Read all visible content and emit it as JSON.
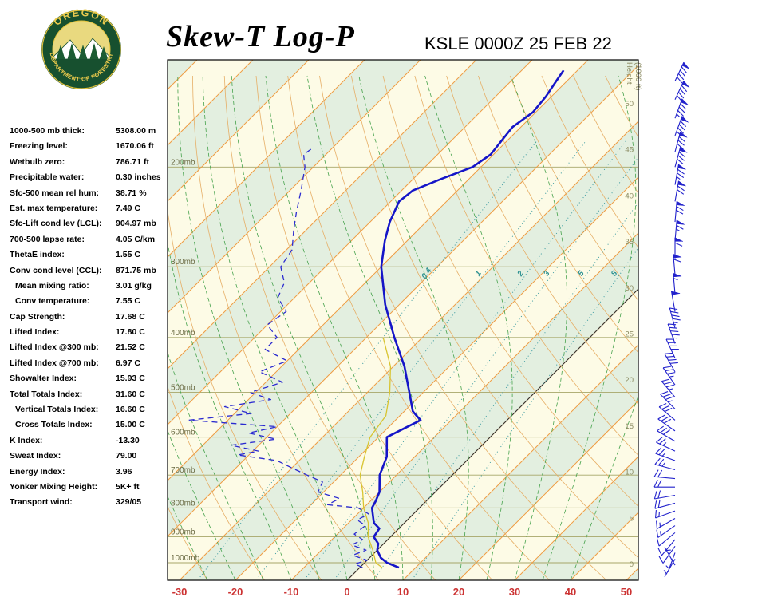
{
  "header": {
    "title": "Skew-T Log-P",
    "station_line": "KSLE 0000Z 25 FEB 22"
  },
  "logo": {
    "arc_top": "OREGON",
    "arc_bottom": "DEPARTMENT OF FORESTRY"
  },
  "stats": [
    {
      "label": "1000-500 mb thick:",
      "value": "5308.00 m",
      "indent": false
    },
    {
      "label": "Freezing level:",
      "value": "1670.06 ft",
      "indent": false
    },
    {
      "label": "Wetbulb zero:",
      "value": "786.71 ft",
      "indent": false
    },
    {
      "label": "Precipitable water:",
      "value": "0.30 inches",
      "indent": false
    },
    {
      "label": "Sfc-500 mean rel hum:",
      "value": "38.71 %",
      "indent": false
    },
    {
      "label": "Est. max temperature:",
      "value": "7.49 C",
      "indent": false
    },
    {
      "label": "Sfc-Lift cond lev (LCL):",
      "value": "904.97 mb",
      "indent": false
    },
    {
      "label": "700-500 lapse rate:",
      "value": "4.05 C/km",
      "indent": false
    },
    {
      "label": "ThetaE index:",
      "value": "1.55 C",
      "indent": false
    },
    {
      "label": "Conv cond level (CCL):",
      "value": "871.75 mb",
      "indent": false
    },
    {
      "label": "Mean mixing ratio:",
      "value": "3.01 g/kg",
      "indent": true
    },
    {
      "label": "Conv temperature:",
      "value": "7.55 C",
      "indent": true
    },
    {
      "label": "Cap Strength:",
      "value": "17.68 C",
      "indent": false
    },
    {
      "label": "Lifted Index:",
      "value": "17.80 C",
      "indent": false
    },
    {
      "label": "Lifted Index @300 mb:",
      "value": "21.52 C",
      "indent": false
    },
    {
      "label": "Lifted Index @700 mb:",
      "value": "6.97 C",
      "indent": false
    },
    {
      "label": "Showalter Index:",
      "value": "15.93 C",
      "indent": false
    },
    {
      "label": "Total Totals Index:",
      "value": "31.60 C",
      "indent": false
    },
    {
      "label": "Vertical Totals Index:",
      "value": "16.60 C",
      "indent": true
    },
    {
      "label": "Cross Totals Index:",
      "value": "15.00 C",
      "indent": true
    },
    {
      "label": "K Index:",
      "value": "-13.30",
      "indent": false
    },
    {
      "label": "Sweat Index:",
      "value": "79.00",
      "indent": false
    },
    {
      "label": "Energy Index:",
      "value": "3.96",
      "indent": false
    },
    {
      "label": "Yonker Mixing Height:",
      "value": "5K+ ft",
      "indent": false
    },
    {
      "label": "Transport wind:",
      "value": "329/05",
      "indent": false
    }
  ],
  "chart_data": {
    "type": "skewt_logp",
    "title": "Skew-T Log-P",
    "station": "KSLE",
    "valid_time": "0000Z 25 FEB 22",
    "pressure_axis": {
      "unit": "mb",
      "levels": [
        200,
        300,
        400,
        500,
        600,
        700,
        800,
        900,
        1000
      ],
      "range": [
        130,
        1074
      ]
    },
    "temp_axis": {
      "unit": "C",
      "ticks": [
        -30,
        -20,
        -10,
        0,
        10,
        20,
        30,
        40,
        50
      ],
      "skew_deg": 45
    },
    "height_axis": {
      "label": "Height",
      "unit": "(1000 ft)",
      "ticks": [
        50,
        45,
        40,
        35,
        30,
        25,
        20,
        15,
        10,
        5,
        0
      ]
    },
    "mixing_ratio_lines": [
      0.4,
      1,
      2,
      3,
      5,
      8
    ],
    "grid": {
      "isotherm_step": 10,
      "dry_adiabat_step": 10,
      "moist_adiabat_step": 5,
      "pressure_line_step": 100
    },
    "series": {
      "temperature": [
        [
          1020,
          7
        ],
        [
          1000,
          4
        ],
        [
          980,
          2
        ],
        [
          950,
          0
        ],
        [
          925,
          -1
        ],
        [
          900,
          -3
        ],
        [
          870,
          -3.5
        ],
        [
          850,
          -5.5
        ],
        [
          800,
          -8.5
        ],
        [
          780,
          -9
        ],
        [
          750,
          -10
        ],
        [
          700,
          -13
        ],
        [
          650,
          -15
        ],
        [
          600,
          -18.5
        ],
        [
          560,
          -15.5
        ],
        [
          550,
          -17
        ],
        [
          540,
          -18.5
        ],
        [
          500,
          -22.5
        ],
        [
          450,
          -28
        ],
        [
          400,
          -35
        ],
        [
          350,
          -42.5
        ],
        [
          300,
          -50
        ],
        [
          270,
          -54
        ],
        [
          250,
          -56.5
        ],
        [
          230,
          -58.5
        ],
        [
          220,
          -58
        ],
        [
          210,
          -55
        ],
        [
          200,
          -51.5
        ],
        [
          190,
          -50.5
        ],
        [
          180,
          -51
        ],
        [
          170,
          -51.5
        ],
        [
          160,
          -50.5
        ],
        [
          150,
          -51
        ],
        [
          140,
          -52
        ],
        [
          135,
          -52.5
        ]
      ],
      "dewpoint": [
        [
          1020,
          0.5
        ],
        [
          1005,
          -1.5
        ],
        [
          990,
          0
        ],
        [
          970,
          -3.5
        ],
        [
          950,
          -2
        ],
        [
          930,
          -5.5
        ],
        [
          910,
          -4.5
        ],
        [
          890,
          -7
        ],
        [
          860,
          -6.5
        ],
        [
          840,
          -9
        ],
        [
          820,
          -8
        ],
        [
          800,
          -11
        ],
        [
          790,
          -17
        ],
        [
          770,
          -16
        ],
        [
          750,
          -21
        ],
        [
          720,
          -22
        ],
        [
          700,
          -26
        ],
        [
          680,
          -30
        ],
        [
          660,
          -34
        ],
        [
          645,
          -42
        ],
        [
          635,
          -39
        ],
        [
          620,
          -45
        ],
        [
          605,
          -38
        ],
        [
          590,
          -44
        ],
        [
          575,
          -40
        ],
        [
          560,
          -57
        ],
        [
          545,
          -47
        ],
        [
          530,
          -53
        ],
        [
          515,
          -46
        ],
        [
          500,
          -51
        ],
        [
          480,
          -47
        ],
        [
          460,
          -53
        ],
        [
          440,
          -50
        ],
        [
          420,
          -56
        ],
        [
          400,
          -56
        ],
        [
          380,
          -60
        ],
        [
          360,
          -59
        ],
        [
          340,
          -63
        ],
        [
          320,
          -64.5
        ],
        [
          300,
          -68
        ],
        [
          280,
          -69
        ],
        [
          260,
          -72
        ],
        [
          240,
          -75
        ],
        [
          220,
          -78
        ],
        [
          200,
          -81.5
        ],
        [
          190,
          -84
        ],
        [
          185,
          -83.5
        ]
      ],
      "wetbulb": [
        [
          1020,
          4
        ],
        [
          1000,
          2
        ],
        [
          950,
          -0.8
        ],
        [
          900,
          -4
        ],
        [
          850,
          -6.5
        ],
        [
          800,
          -10
        ],
        [
          750,
          -13
        ],
        [
          700,
          -16.5
        ],
        [
          650,
          -19
        ],
        [
          600,
          -21.5
        ],
        [
          550,
          -22.5
        ],
        [
          500,
          -26
        ],
        [
          450,
          -30.5
        ],
        [
          400,
          -37
        ]
      ]
    },
    "winds": [
      [
        1010,
        330,
        5
      ],
      [
        985,
        210,
        5
      ],
      [
        960,
        200,
        5
      ],
      [
        935,
        215,
        10
      ],
      [
        910,
        220,
        10
      ],
      [
        885,
        230,
        10
      ],
      [
        860,
        235,
        15
      ],
      [
        835,
        240,
        15
      ],
      [
        810,
        250,
        15
      ],
      [
        785,
        255,
        20
      ],
      [
        760,
        260,
        20
      ],
      [
        735,
        270,
        20
      ],
      [
        710,
        275,
        20
      ],
      [
        685,
        285,
        25
      ],
      [
        660,
        290,
        25
      ],
      [
        635,
        295,
        25
      ],
      [
        610,
        300,
        30
      ],
      [
        585,
        305,
        30
      ],
      [
        560,
        310,
        30
      ],
      [
        535,
        315,
        35
      ],
      [
        510,
        320,
        35
      ],
      [
        485,
        325,
        35
      ],
      [
        460,
        330,
        40
      ],
      [
        435,
        335,
        40
      ],
      [
        410,
        340,
        45
      ],
      [
        385,
        345,
        45
      ],
      [
        360,
        350,
        50
      ],
      [
        335,
        355,
        55
      ],
      [
        310,
        355,
        60
      ],
      [
        290,
        360,
        60
      ],
      [
        270,
        5,
        65
      ],
      [
        250,
        5,
        70
      ],
      [
        230,
        10,
        70
      ],
      [
        215,
        10,
        75
      ],
      [
        200,
        15,
        80
      ],
      [
        188,
        15,
        80
      ],
      [
        176,
        20,
        85
      ],
      [
        164,
        20,
        85
      ],
      [
        152,
        25,
        90
      ],
      [
        141,
        25,
        90
      ]
    ],
    "colors": {
      "temperature": "#1515c8",
      "dewpoint": "#2a2ad0",
      "wetbulb": "#d8c430",
      "isotherm": "#ef9d44",
      "zero_isotherm": "#333333",
      "dry_adiabat": "#e6ae66",
      "moist_adiabat": "#46a24c",
      "mixing_ratio": "#3a9aa0",
      "pressure_line": "#a6a668",
      "band_green": "#e3efe0",
      "band_cream": "#fdfbe6",
      "axis_label": "#cc3333",
      "height_label": "#8a8a60",
      "wind": "#2222cc",
      "border": "#000000"
    }
  }
}
